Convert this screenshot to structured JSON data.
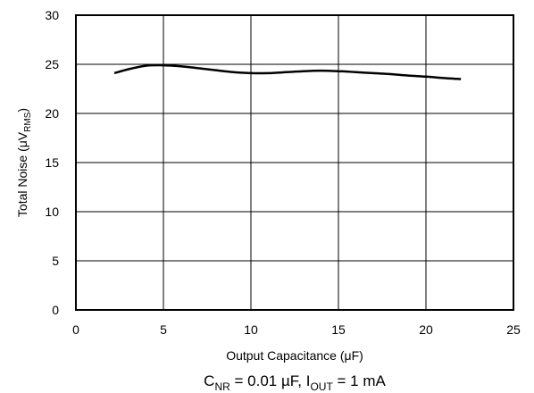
{
  "chart_data": {
    "type": "line",
    "xlabel": {
      "main": "Output Capacitance (",
      "greek": "μ",
      "unit": "F)"
    },
    "ylabel": {
      "main": "Total Noise (",
      "greek": "μ",
      "v": "V",
      "sub": "RMS",
      "close": ")"
    },
    "xlim": [
      0,
      25
    ],
    "ylim": [
      0,
      30
    ],
    "xticks": [
      "0",
      "5",
      "10",
      "15",
      "20",
      "25"
    ],
    "yticks": [
      "0",
      "5",
      "10",
      "15",
      "20",
      "25",
      "30"
    ],
    "grid": true,
    "series": [
      {
        "color": "#000000",
        "x": [
          2.2,
          3,
          4,
          5,
          6,
          7,
          8,
          9,
          10,
          11,
          12,
          13,
          14,
          15,
          16,
          17,
          18,
          19,
          20,
          21,
          22
        ],
        "values": [
          24.1,
          24.5,
          24.85,
          24.9,
          24.8,
          24.6,
          24.4,
          24.2,
          24.1,
          24.1,
          24.2,
          24.3,
          24.35,
          24.3,
          24.2,
          24.1,
          24.0,
          23.85,
          23.75,
          23.6,
          23.5
        ]
      }
    ],
    "caption": {
      "c": "C",
      "c_sub": "NR",
      "mid": " = 0.01 µF, I",
      "i_sub": "OUT",
      "tail": " = 1 mA"
    }
  }
}
